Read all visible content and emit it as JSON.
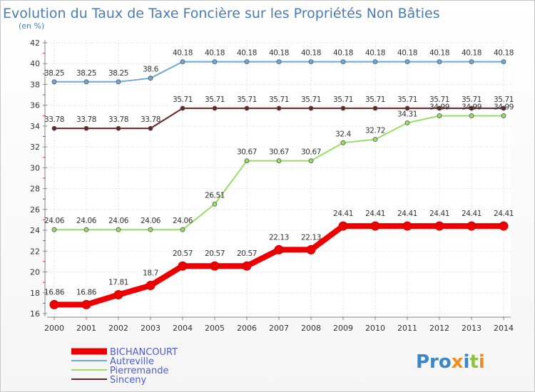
{
  "chart_data": {
    "type": "line",
    "title": "Evolution du Taux de Taxe Foncière sur les Propriétés Non Bâties",
    "ylabel": "(en %)",
    "xlabel": "",
    "ylim": [
      16,
      42
    ],
    "yticks": [
      "16",
      "18",
      "20",
      "22",
      "24",
      "26",
      "28",
      "30",
      "32",
      "34",
      "36",
      "38",
      "40",
      "42"
    ],
    "x": [
      "2000",
      "2001",
      "2002",
      "2003",
      "2004",
      "2005",
      "2006",
      "2007",
      "2008",
      "2009",
      "2010",
      "2011",
      "2012",
      "2013",
      "2014"
    ],
    "grid": true,
    "series": [
      {
        "name": "BICHANCOURT",
        "color": "#ee0000",
        "values": [
          16.86,
          16.86,
          17.81,
          18.7,
          20.57,
          20.57,
          20.57,
          22.13,
          22.13,
          24.41,
          24.41,
          24.41,
          24.41,
          24.41,
          24.41
        ],
        "labels": [
          "16.86",
          "16.86",
          "17.81",
          "18.7",
          "20.57",
          "20.57",
          "20.57",
          "22.13",
          "22.13",
          "24.41",
          "24.41",
          "24.41",
          "24.41",
          "24.41",
          "24.41"
        ]
      },
      {
        "name": "Autreville",
        "color": "#6fa8dc",
        "values": [
          38.25,
          38.25,
          38.25,
          38.6,
          40.18,
          40.18,
          40.18,
          40.18,
          40.18,
          40.18,
          40.18,
          40.18,
          40.18,
          40.18,
          40.18
        ],
        "labels": [
          "38.25",
          "38.25",
          "38.25",
          "38.6",
          "40.18",
          "40.18",
          "40.18",
          "40.18",
          "40.18",
          "40.18",
          "40.18",
          "40.18",
          "40.18",
          "40.18",
          "40.18"
        ]
      },
      {
        "name": "Pierremande",
        "color": "#99dd66",
        "values": [
          24.06,
          24.06,
          24.06,
          24.06,
          24.06,
          26.51,
          30.67,
          30.67,
          30.67,
          32.4,
          32.72,
          34.31,
          34.99,
          34.99,
          34.99
        ],
        "labels": [
          "24.06",
          "24.06",
          "24.06",
          "24.06",
          "24.06",
          "26.51",
          "30.67",
          "30.67",
          "30.67",
          "32.4",
          "32.72",
          "34.31",
          "34.99",
          "34.99",
          "34.99"
        ]
      },
      {
        "name": "Sinceny",
        "color": "#6b2222",
        "values": [
          33.78,
          33.78,
          33.78,
          33.78,
          35.71,
          35.71,
          35.71,
          35.71,
          35.71,
          35.71,
          35.71,
          35.71,
          35.71,
          35.71,
          35.71
        ],
        "labels": [
          "33.78",
          "33.78",
          "33.78",
          "33.78",
          "35.71",
          "35.71",
          "35.71",
          "35.71",
          "35.71",
          "35.71",
          "35.71",
          "35.71",
          "35.71",
          "35.71",
          "35.71"
        ]
      }
    ]
  },
  "logo": {
    "text": "Proxiti"
  }
}
